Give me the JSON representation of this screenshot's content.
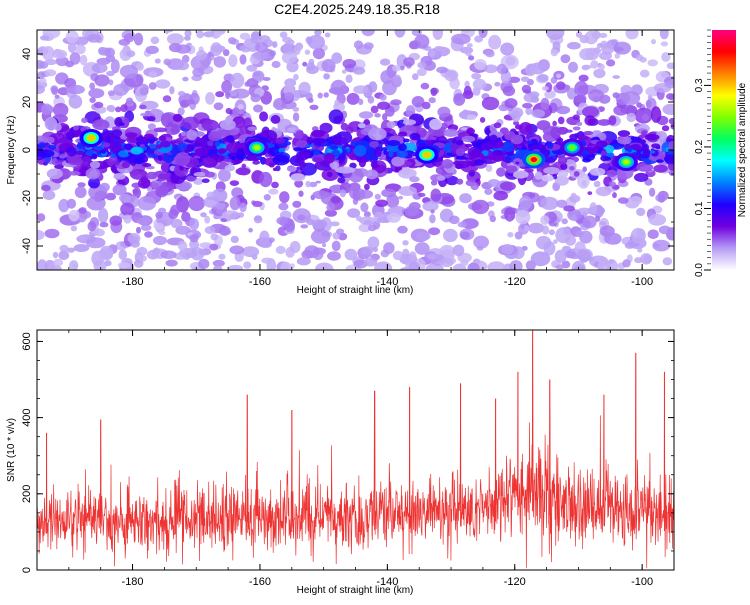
{
  "page": {
    "title": "C2E4.2025.249.18.35.R18"
  },
  "chart_data": [
    {
      "type": "heatmap",
      "xlabel": "Height of straight line (km)",
      "ylabel": "Frequency (Hz)",
      "xlim": [
        -195,
        -95
      ],
      "ylim": [
        -50,
        50
      ],
      "xticks": [
        -180,
        -160,
        -140,
        -120,
        -100
      ],
      "yticks": [
        -40,
        -20,
        0,
        20,
        40
      ],
      "colorbar": {
        "label": "Normalized spectral amplitude",
        "range": [
          0.0,
          0.39
        ],
        "ticks": [
          0.0,
          0.1,
          0.2,
          0.3
        ],
        "colormap": [
          "#ffffff",
          "#b59bf5",
          "#7000e0",
          "#2000ff",
          "#0080ff",
          "#00ffff",
          "#00ff60",
          "#80ff00",
          "#ffff00",
          "#ff8000",
          "#ff0000",
          "#ff0080"
        ]
      },
      "band": {
        "center_hz": 0,
        "half_width_hz": 8,
        "typical_value": 0.12
      },
      "hotspots": [
        {
          "x": -186.5,
          "y": 5,
          "value": 0.3
        },
        {
          "x": -160.5,
          "y": 1,
          "value": 0.26
        },
        {
          "x": -133.8,
          "y": -2,
          "value": 0.3
        },
        {
          "x": -117,
          "y": -4,
          "value": 0.36
        },
        {
          "x": -111,
          "y": 1,
          "value": 0.24
        },
        {
          "x": -102.5,
          "y": -5,
          "value": 0.26
        }
      ]
    },
    {
      "type": "line",
      "xlabel": "Height of straight line (km)",
      "ylabel": "SNR (10 * v/v)",
      "xlim": [
        -195,
        -95
      ],
      "ylim": [
        0,
        630
      ],
      "xticks": [
        -180,
        -160,
        -140,
        -120,
        -100
      ],
      "yticks": [
        0,
        200,
        400,
        600
      ],
      "series_color": "#ee3333",
      "baseline": [
        {
          "x": -195,
          "mean": 130,
          "spread": 70
        },
        {
          "x": -160,
          "mean": 135,
          "spread": 75
        },
        {
          "x": -140,
          "mean": 145,
          "spread": 80
        },
        {
          "x": -125,
          "mean": 160,
          "spread": 85
        },
        {
          "x": -117,
          "mean": 210,
          "spread": 110
        },
        {
          "x": -110,
          "mean": 170,
          "spread": 95
        },
        {
          "x": -95,
          "mean": 140,
          "spread": 80
        }
      ],
      "peaks": [
        {
          "x": -193.5,
          "y": 360
        },
        {
          "x": -185,
          "y": 395
        },
        {
          "x": -162,
          "y": 460
        },
        {
          "x": -155,
          "y": 420
        },
        {
          "x": -142,
          "y": 470
        },
        {
          "x": -136.5,
          "y": 480
        },
        {
          "x": -128.5,
          "y": 490
        },
        {
          "x": -123,
          "y": 450
        },
        {
          "x": -119.5,
          "y": 520
        },
        {
          "x": -117.2,
          "y": 630
        },
        {
          "x": -114.5,
          "y": 500
        },
        {
          "x": -106,
          "y": 460
        },
        {
          "x": -101,
          "y": 570
        },
        {
          "x": -96.5,
          "y": 520
        }
      ]
    }
  ]
}
